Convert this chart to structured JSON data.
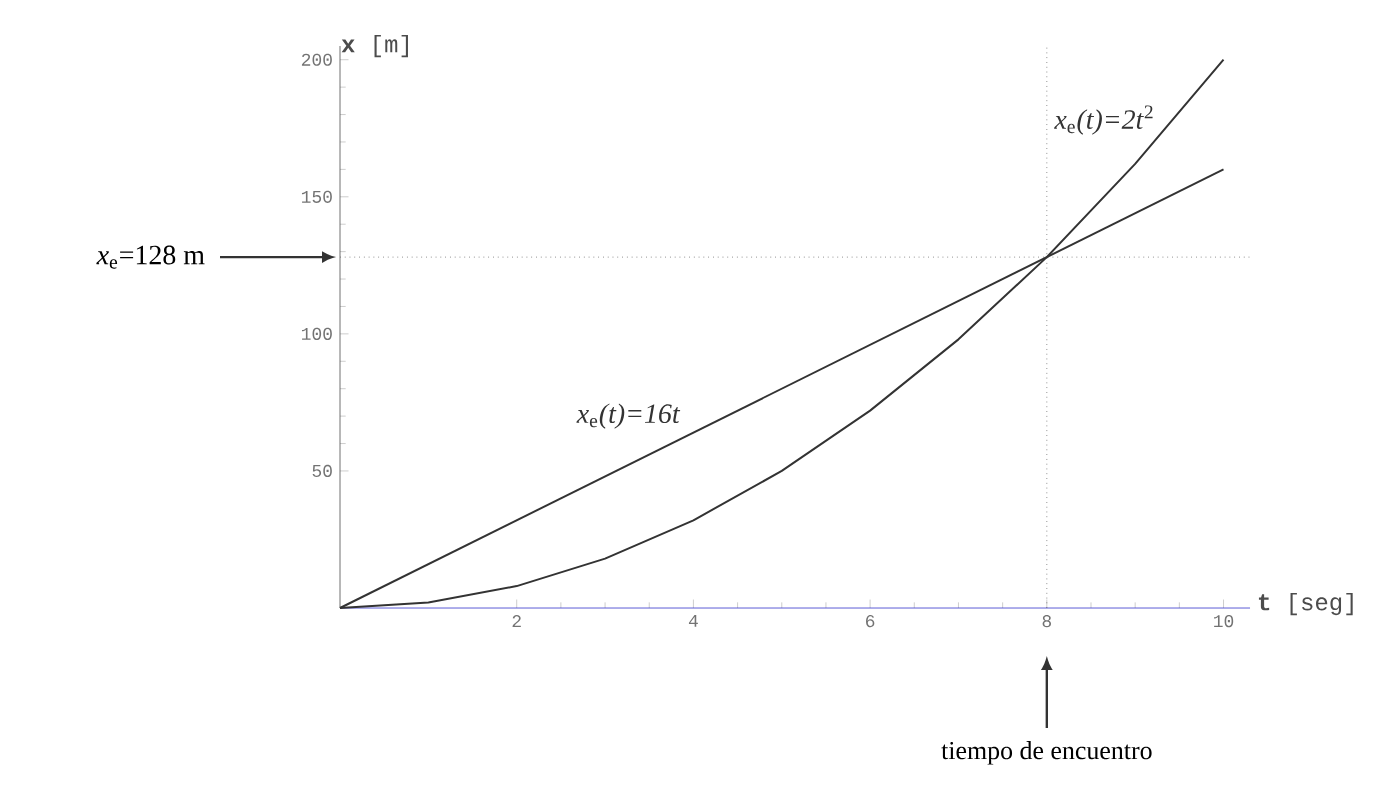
{
  "chart_data": {
    "type": "line",
    "xlabel": "**t** [seg]",
    "ylabel": "**x** [m]",
    "xlim": [
      0,
      10.3
    ],
    "ylim": [
      0,
      205
    ],
    "xticks": [
      2,
      4,
      6,
      8,
      10
    ],
    "yticks": [
      50,
      100,
      150,
      200
    ],
    "grid": false,
    "legend": false,
    "marker": "none",
    "line_style": "solid",
    "series": [
      {
        "name": "*x*$_{e}$*(t)=16t*",
        "color": "#333333",
        "x": [
          0,
          10
        ],
        "values": [
          0,
          160
        ]
      },
      {
        "name": "*x*$_{e}$*(t)=2t*$^{2}$",
        "color": "#333333",
        "x": [
          0,
          1,
          2,
          3,
          4,
          5,
          6,
          7,
          8,
          9,
          10
        ],
        "values": [
          0,
          2,
          8,
          18,
          32,
          50,
          72,
          98,
          128,
          162,
          200
        ]
      }
    ],
    "ref_lines": [
      {
        "axis": "y",
        "value": 128,
        "label": "*x*$_{e}$=128 m",
        "line_style": "dotted",
        "color": "#555555"
      },
      {
        "axis": "x",
        "value": 8,
        "line_style": "dotted",
        "color": "#555555"
      }
    ],
    "annotations": [
      "tiempo de encuentro"
    ]
  }
}
